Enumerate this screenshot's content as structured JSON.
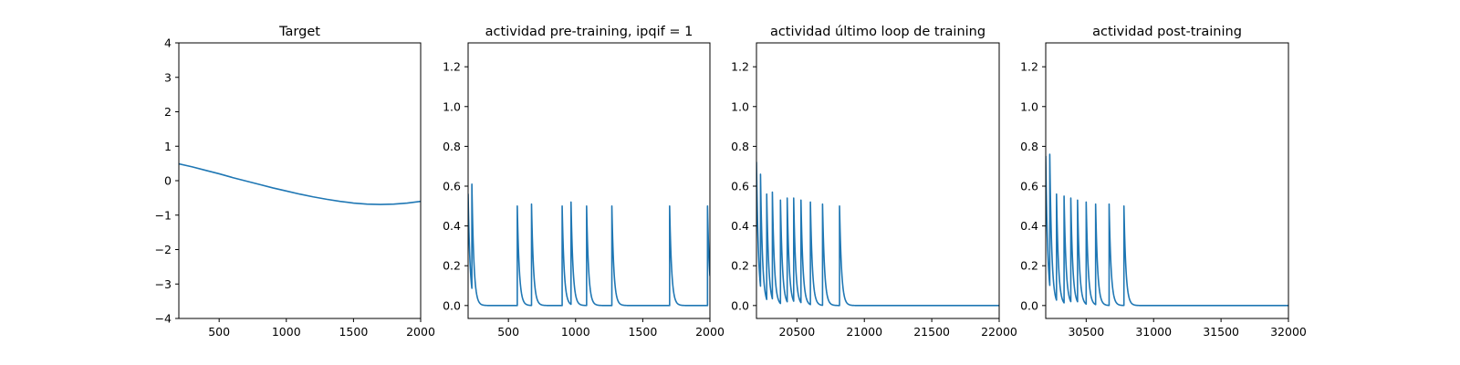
{
  "colors": {
    "series": "#1f77b4",
    "axes": "#000000",
    "background": "#ffffff"
  },
  "chart_data": [
    {
      "type": "line",
      "title": "Target",
      "xlabel": "",
      "ylabel": "",
      "xlim": [
        200,
        2000
      ],
      "ylim": [
        -4,
        4
      ],
      "xticks": [
        500,
        1000,
        1500,
        2000
      ],
      "yticks": [
        -4,
        -3,
        -2,
        -1,
        0,
        1,
        2,
        3,
        4
      ],
      "xtick_labels": [
        "500",
        "1000",
        "1500",
        "2000"
      ],
      "ytick_labels": [
        "−4",
        "−3",
        "−2",
        "−1",
        "0",
        "1",
        "2",
        "3",
        "4"
      ],
      "grid": false,
      "series": [
        {
          "x": [
            200,
            300,
            400,
            500,
            600,
            700,
            800,
            900,
            1000,
            1100,
            1200,
            1300,
            1400,
            1500,
            1600,
            1700,
            1800,
            1900,
            2000
          ],
          "y": [
            0.49,
            0.4,
            0.3,
            0.2,
            0.09,
            -0.01,
            -0.11,
            -0.21,
            -0.3,
            -0.39,
            -0.47,
            -0.54,
            -0.6,
            -0.65,
            -0.68,
            -0.69,
            -0.68,
            -0.65,
            -0.6
          ]
        }
      ]
    },
    {
      "type": "line",
      "title": "actividad pre-training, ipqif = 1",
      "xlabel": "",
      "ylabel": "",
      "xlim": [
        200,
        2000
      ],
      "ylim": [
        -0.065,
        1.32
      ],
      "xticks": [
        500,
        1000,
        1500,
        2000
      ],
      "yticks": [
        0.0,
        0.2,
        0.4,
        0.6,
        0.8,
        1.0,
        1.2
      ],
      "xtick_labels": [
        "500",
        "1000",
        "1500",
        "2000"
      ],
      "ytick_labels": [
        "0.0",
        "0.2",
        "0.4",
        "0.6",
        "0.8",
        "1.0",
        "1.2"
      ],
      "grid": false,
      "series": [
        {
          "start_value": 0.56,
          "spikes": [
            [
              228,
              0.61
            ],
            [
              565,
              0.5
            ],
            [
              672,
              0.51
            ],
            [
              900,
              0.5
            ],
            [
              966,
              0.52
            ],
            [
              1082,
              0.5
            ],
            [
              1270,
              0.5
            ],
            [
              1700,
              0.5
            ],
            [
              1982,
              0.5
            ]
          ]
        }
      ]
    },
    {
      "type": "line",
      "title": "actividad último loop de training",
      "xlabel": "",
      "ylabel": "",
      "xlim": [
        20200,
        22000
      ],
      "ylim": [
        -0.065,
        1.32
      ],
      "xticks": [
        20500,
        21000,
        21500,
        22000
      ],
      "yticks": [
        0.0,
        0.2,
        0.4,
        0.6,
        0.8,
        1.0,
        1.2
      ],
      "xtick_labels": [
        "20500",
        "21000",
        "21500",
        "22000"
      ],
      "ytick_labels": [
        "0.0",
        "0.2",
        "0.4",
        "0.6",
        "0.8",
        "1.0",
        "1.2"
      ],
      "grid": false,
      "series": [
        {
          "start_value": 0.72,
          "spikes": [
            [
              20230,
              0.66
            ],
            [
              20275,
              0.56
            ],
            [
              20318,
              0.57
            ],
            [
              20378,
              0.53
            ],
            [
              20428,
              0.54
            ],
            [
              20475,
              0.54
            ],
            [
              20530,
              0.53
            ],
            [
              20600,
              0.52
            ],
            [
              20690,
              0.51
            ],
            [
              20815,
              0.5
            ]
          ]
        }
      ]
    },
    {
      "type": "line",
      "title": "actividad post-training",
      "xlabel": "",
      "ylabel": "",
      "xlim": [
        30200,
        32000
      ],
      "ylim": [
        -0.065,
        1.32
      ],
      "xticks": [
        30500,
        31000,
        31500,
        32000
      ],
      "yticks": [
        0.0,
        0.2,
        0.4,
        0.6,
        0.8,
        1.0,
        1.2
      ],
      "xtick_labels": [
        "30500",
        "31000",
        "31500",
        "32000"
      ],
      "ytick_labels": [
        "0.0",
        "0.2",
        "0.4",
        "0.6",
        "0.8",
        "1.0",
        "1.2"
      ],
      "grid": false,
      "series": [
        {
          "start_value": 0.75,
          "spikes": [
            [
              30230,
              0.76
            ],
            [
              30280,
              0.56
            ],
            [
              30335,
              0.55
            ],
            [
              30385,
              0.54
            ],
            [
              30435,
              0.53
            ],
            [
              30500,
              0.52
            ],
            [
              30570,
              0.51
            ],
            [
              30670,
              0.51
            ],
            [
              30780,
              0.5
            ]
          ]
        }
      ]
    }
  ]
}
